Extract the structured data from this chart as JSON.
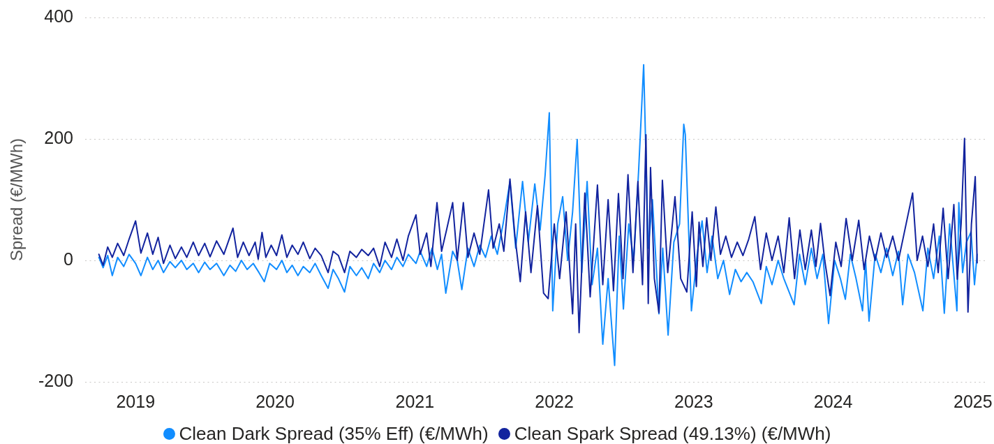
{
  "chart_data": {
    "type": "line",
    "ylabel": "Spread (€/MWh)",
    "xlim": [
      "2018-08-22",
      "2025-02-05"
    ],
    "xticks": [
      {
        "value": "2019-01-01",
        "label": "2019"
      },
      {
        "value": "2020-01-01",
        "label": "2020"
      },
      {
        "value": "2021-01-01",
        "label": "2021"
      },
      {
        "value": "2022-01-01",
        "label": "2022"
      },
      {
        "value": "2023-01-01",
        "label": "2023"
      },
      {
        "value": "2024-01-01",
        "label": "2024"
      },
      {
        "value": "2025-01-01",
        "label": "2025"
      }
    ],
    "ylim": [
      -200,
      400
    ],
    "yticks": [
      -200,
      0,
      200,
      400
    ],
    "grid": "y",
    "legend": "bottom",
    "series": [
      {
        "name": "Clean Dark Spread (35% Eff) (€/MWh)",
        "color": "#118dff",
        "x": [
          "2018-09-27",
          "2018-10-08",
          "2018-10-20",
          "2018-11-01",
          "2018-11-15",
          "2018-12-01",
          "2018-12-15",
          "2019-01-01",
          "2019-01-15",
          "2019-02-01",
          "2019-02-15",
          "2019-03-01",
          "2019-03-15",
          "2019-04-01",
          "2019-04-15",
          "2019-05-01",
          "2019-05-15",
          "2019-06-01",
          "2019-06-15",
          "2019-07-01",
          "2019-07-15",
          "2019-08-01",
          "2019-08-20",
          "2019-09-05",
          "2019-09-20",
          "2019-10-05",
          "2019-10-20",
          "2019-11-05",
          "2019-11-20",
          "2019-12-04",
          "2019-12-18",
          "2020-01-05",
          "2020-01-19",
          "2020-02-01",
          "2020-02-15",
          "2020-03-01",
          "2020-03-15",
          "2020-04-01",
          "2020-04-15",
          "2020-05-01",
          "2020-05-19",
          "2020-06-01",
          "2020-06-15",
          "2020-07-01",
          "2020-07-15",
          "2020-08-01",
          "2020-08-15",
          "2020-09-01",
          "2020-09-15",
          "2020-10-01",
          "2020-10-15",
          "2020-11-01",
          "2020-11-15",
          "2020-12-01",
          "2020-12-15",
          "2021-01-04",
          "2021-01-15",
          "2021-02-01",
          "2021-02-15",
          "2021-03-01",
          "2021-03-12",
          "2021-03-23",
          "2021-04-10",
          "2021-04-22",
          "2021-05-04",
          "2021-05-20",
          "2021-06-05",
          "2021-06-20",
          "2021-07-05",
          "2021-07-20",
          "2021-08-05",
          "2021-08-20",
          "2021-09-07",
          "2021-09-22",
          "2021-10-10",
          "2021-10-25",
          "2021-11-11",
          "2021-11-25",
          "2021-12-08",
          "2021-12-19",
          "2021-12-28",
          "2022-01-10",
          "2022-01-23",
          "2022-02-05",
          "2022-02-18",
          "2022-03-02",
          "2022-03-14",
          "2022-03-28",
          "2022-04-10",
          "2022-04-24",
          "2022-05-08",
          "2022-05-22",
          "2022-06-08",
          "2022-06-20",
          "2022-07-01",
          "2022-07-15",
          "2022-07-28",
          "2022-08-10",
          "2022-08-23",
          "2022-09-04",
          "2022-09-15",
          "2022-10-02",
          "2022-10-12",
          "2022-10-26",
          "2022-11-10",
          "2022-11-25",
          "2022-12-06",
          "2022-12-10",
          "2022-12-26",
          "2023-01-10",
          "2023-01-23",
          "2023-02-05",
          "2023-02-18",
          "2023-03-05",
          "2023-03-20",
          "2023-04-05",
          "2023-04-20",
          "2023-05-05",
          "2023-05-20",
          "2023-06-05",
          "2023-06-27",
          "2023-07-10",
          "2023-07-25",
          "2023-08-10",
          "2023-08-25",
          "2023-09-21",
          "2023-10-05",
          "2023-10-20",
          "2023-11-05",
          "2023-11-20",
          "2023-12-05",
          "2023-12-20",
          "2024-01-05",
          "2024-01-20",
          "2024-02-02",
          "2024-02-15",
          "2024-03-01",
          "2024-03-18",
          "2024-03-26",
          "2024-04-04",
          "2024-04-20",
          "2024-05-05",
          "2024-05-20",
          "2024-06-05",
          "2024-06-20",
          "2024-07-01",
          "2024-07-15",
          "2024-08-01",
          "2024-08-23",
          "2024-09-05",
          "2024-09-20",
          "2024-10-05",
          "2024-10-18",
          "2024-11-01",
          "2024-11-20",
          "2024-11-25",
          "2024-12-05",
          "2024-12-15",
          "2024-12-27",
          "2025-01-05",
          "2025-01-12"
        ],
        "values": [
          5,
          -12,
          8,
          -25,
          5,
          -10,
          10,
          -5,
          -25,
          5,
          -15,
          0,
          -20,
          -2,
          -12,
          0,
          -15,
          -5,
          -20,
          -3,
          -15,
          -5,
          -25,
          -8,
          -18,
          0,
          -15,
          -5,
          -20,
          -35,
          -5,
          -15,
          0,
          -20,
          -8,
          -25,
          -10,
          -20,
          -5,
          -25,
          -46,
          -15,
          -30,
          -52,
          -10,
          -25,
          -12,
          -30,
          -5,
          -20,
          0,
          -15,
          5,
          -10,
          10,
          -5,
          15,
          -10,
          20,
          -15,
          10,
          -54,
          15,
          0,
          -48,
          20,
          -10,
          25,
          5,
          40,
          10,
          60,
          130,
          20,
          130,
          30,
          126,
          50,
          140,
          243,
          -83,
          60,
          105,
          0,
          80,
          199,
          -20,
          130,
          -40,
          20,
          -138,
          -30,
          -173,
          40,
          -80,
          60,
          0,
          150,
          322,
          20,
          100,
          -88,
          20,
          -123,
          30,
          60,
          224,
          207,
          -83,
          10,
          65,
          -20,
          40,
          -30,
          0,
          -56,
          -15,
          -35,
          -20,
          -35,
          -71,
          -10,
          -40,
          0,
          -30,
          -73,
          10,
          -40,
          20,
          -30,
          10,
          -104,
          0,
          -30,
          -64,
          10,
          -30,
          -83,
          0,
          -100,
          10,
          -20,
          20,
          -25,
          15,
          -73,
          10,
          -20,
          -83,
          20,
          -30,
          40,
          -87,
          60,
          -83,
          95,
          -20,
          30,
          47,
          -40,
          10
        ]
      },
      {
        "name": "Clean Spark Spread (49.13%) (€/MWh)",
        "color": "#12239e",
        "x": [
          "2018-09-27",
          "2018-10-08",
          "2018-10-20",
          "2018-11-01",
          "2018-11-15",
          "2018-12-01",
          "2018-12-15",
          "2019-01-01",
          "2019-01-15",
          "2019-02-01",
          "2019-02-15",
          "2019-03-01",
          "2019-03-15",
          "2019-04-01",
          "2019-04-15",
          "2019-05-01",
          "2019-05-15",
          "2019-06-01",
          "2019-06-15",
          "2019-07-01",
          "2019-07-15",
          "2019-08-01",
          "2019-08-20",
          "2019-09-13",
          "2019-09-25",
          "2019-10-10",
          "2019-10-25",
          "2019-11-10",
          "2019-11-18",
          "2019-11-28",
          "2019-12-08",
          "2019-12-22",
          "2020-01-05",
          "2020-01-19",
          "2020-02-01",
          "2020-02-15",
          "2020-03-01",
          "2020-03-15",
          "2020-04-01",
          "2020-04-15",
          "2020-05-01",
          "2020-05-19",
          "2020-06-01",
          "2020-06-15",
          "2020-07-01",
          "2020-07-15",
          "2020-08-01",
          "2020-08-15",
          "2020-09-01",
          "2020-09-15",
          "2020-10-01",
          "2020-10-15",
          "2020-11-01",
          "2020-11-15",
          "2020-12-01",
          "2020-12-15",
          "2021-01-04",
          "2021-01-15",
          "2021-02-01",
          "2021-02-12",
          "2021-02-28",
          "2021-03-12",
          "2021-03-25",
          "2021-04-10",
          "2021-04-22",
          "2021-05-08",
          "2021-05-20",
          "2021-06-05",
          "2021-06-20",
          "2021-07-13",
          "2021-07-25",
          "2021-08-10",
          "2021-08-22",
          "2021-09-07",
          "2021-09-20",
          "2021-10-04",
          "2021-10-18",
          "2021-11-01",
          "2021-11-18",
          "2021-12-04",
          "2021-12-16",
          "2022-01-01",
          "2022-01-15",
          "2022-02-01",
          "2022-02-18",
          "2022-02-26",
          "2022-03-07",
          "2022-03-22",
          "2022-04-05",
          "2022-04-24",
          "2022-05-08",
          "2022-05-22",
          "2022-06-05",
          "2022-06-18",
          "2022-06-30",
          "2022-07-13",
          "2022-07-26",
          "2022-08-08",
          "2022-08-20",
          "2022-08-29",
          "2022-09-04",
          "2022-09-10",
          "2022-09-20",
          "2022-10-02",
          "2022-10-11",
          "2022-10-25",
          "2022-11-13",
          "2022-11-28",
          "2022-12-14",
          "2022-12-28",
          "2023-01-08",
          "2023-01-15",
          "2023-01-25",
          "2023-02-04",
          "2023-02-15",
          "2023-02-28",
          "2023-03-12",
          "2023-03-26",
          "2023-04-10",
          "2023-04-25",
          "2023-05-10",
          "2023-05-25",
          "2023-06-10",
          "2023-06-25",
          "2023-07-10",
          "2023-07-25",
          "2023-08-10",
          "2023-08-25",
          "2023-09-08",
          "2023-09-22",
          "2023-10-06",
          "2023-10-20",
          "2023-11-05",
          "2023-11-17",
          "2023-11-29",
          "2023-12-10",
          "2023-12-24",
          "2024-01-08",
          "2024-01-22",
          "2024-02-04",
          "2024-02-20",
          "2024-03-08",
          "2024-03-22",
          "2024-04-05",
          "2024-04-20",
          "2024-05-05",
          "2024-05-20",
          "2024-06-05",
          "2024-06-20",
          "2024-07-05",
          "2024-07-27",
          "2024-08-08",
          "2024-08-22",
          "2024-09-05",
          "2024-09-20",
          "2024-10-02",
          "2024-10-15",
          "2024-10-28",
          "2024-11-12",
          "2024-11-21",
          "2024-12-01",
          "2024-12-10",
          "2024-12-19",
          "2024-12-28",
          "2025-01-07",
          "2025-01-12"
        ],
        "values": [
          10,
          -8,
          22,
          5,
          28,
          8,
          35,
          65,
          12,
          45,
          10,
          38,
          -5,
          25,
          3,
          22,
          5,
          30,
          8,
          28,
          6,
          32,
          10,
          53,
          5,
          30,
          8,
          30,
          2,
          46,
          5,
          25,
          8,
          42,
          5,
          25,
          10,
          30,
          3,
          20,
          8,
          -20,
          15,
          8,
          -20,
          15,
          5,
          18,
          8,
          20,
          -10,
          30,
          5,
          35,
          0,
          40,
          75,
          10,
          45,
          -10,
          95,
          15,
          50,
          95,
          0,
          95,
          5,
          45,
          10,
          116,
          20,
          60,
          15,
          134,
          40,
          -35,
          80,
          -20,
          90,
          -54,
          -63,
          60,
          -30,
          80,
          -88,
          60,
          -119,
          111,
          -60,
          124,
          -40,
          100,
          -50,
          110,
          -30,
          141,
          -20,
          130,
          -40,
          207,
          -71,
          153,
          -30,
          -86,
          132,
          -20,
          105,
          -30,
          -52,
          80,
          -43,
          63,
          -10,
          70,
          0,
          88,
          10,
          40,
          5,
          30,
          8,
          35,
          72,
          -15,
          45,
          0,
          40,
          -20,
          70,
          -30,
          50,
          -15,
          50,
          -10,
          61,
          0,
          -58,
          30,
          -10,
          69,
          0,
          66,
          -15,
          40,
          0,
          45,
          5,
          40,
          0,
          45,
          111,
          0,
          40,
          -10,
          60,
          -20,
          86,
          -30,
          92,
          -31,
          60,
          201,
          -85,
          60,
          138,
          -4
        ]
      }
    ]
  }
}
